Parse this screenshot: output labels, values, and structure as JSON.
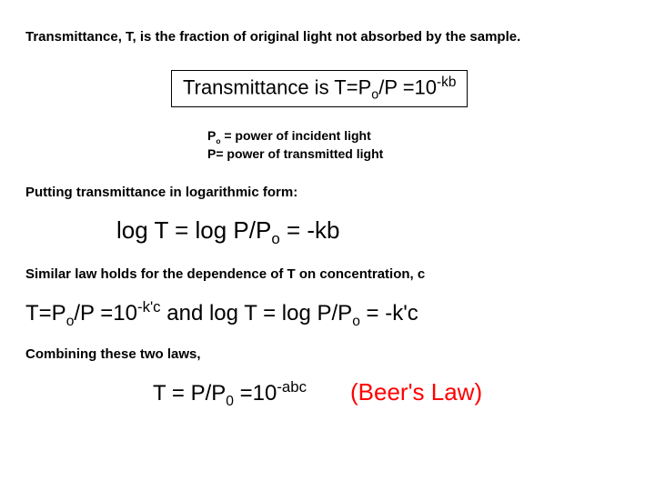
{
  "line1": "Transmittance, T, is the fraction of original light not absorbed by the sample.",
  "boxed": {
    "prefix": "Transmittance is T=P",
    "sub1": "o",
    "mid": "/P =10",
    "sup1": "-kb"
  },
  "defs": {
    "l1a": "P",
    "l1sub": "o",
    "l1b": " = power of incident light",
    "l2": "P= power of transmitted light"
  },
  "para2": "Putting transmittance in logarithmic form:",
  "eq1": {
    "a": "log T = log P/P",
    "sub": "o",
    "b": " = -kb"
  },
  "para3": "Similar law holds for the dependence of T on concentration, c",
  "eq2": {
    "a": "T=P",
    "sub1": "o",
    "b": "/P =10",
    "sup1": "-k'c",
    "c": " and log T = log P/P",
    "sub2": "o",
    "d": " = -k'c"
  },
  "para4": "Combining these two laws,",
  "eq3": {
    "a": "T = P/P",
    "sub": "0",
    "b": " =10",
    "sup": "-abc"
  },
  "beer": "(Beer's Law)",
  "colors": {
    "accent": "#ff0000",
    "text": "#000000",
    "bg": "#ffffff",
    "border": "#000000"
  },
  "typography": {
    "body_font": "Comic Sans MS",
    "equation_font": "Arial",
    "body_size_pt": 11,
    "boxed_size_pt": 17,
    "eq_big_pt": 20,
    "beer_pt": 20
  }
}
